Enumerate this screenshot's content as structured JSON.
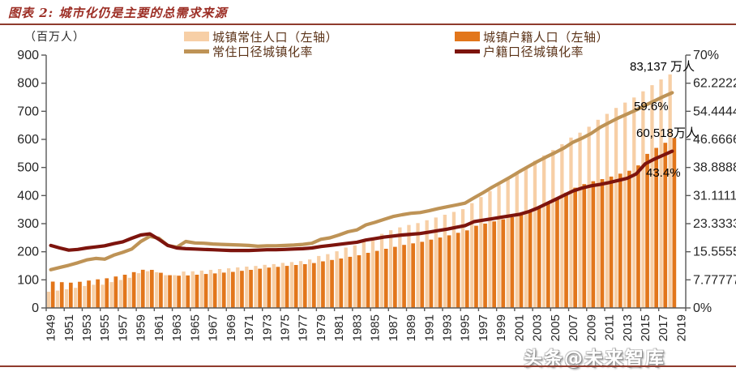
{
  "header": {
    "title": "图表 2: 城市化仍是主要的总需求来源"
  },
  "legend": {
    "items": [
      {
        "label": "城镇常住人口（左轴）",
        "swatch": "bar",
        "color": "#f7cfa6"
      },
      {
        "label": "常住口径城镇化率",
        "swatch": "line",
        "color": "#be9356"
      },
      {
        "label": "城镇户籍人口（左轴）",
        "swatch": "bar",
        "color": "#e2761b"
      },
      {
        "label": "户籍口径城镇化率",
        "swatch": "line",
        "color": "#7d140d"
      }
    ]
  },
  "watermark": "头条@未来智库",
  "chart_data": {
    "type": "combo-bar-line",
    "title": "城市化仍是主要的总需求来源",
    "x": [
      1949,
      1950,
      1951,
      1952,
      1953,
      1954,
      1955,
      1956,
      1957,
      1958,
      1959,
      1960,
      1961,
      1962,
      1963,
      1964,
      1965,
      1966,
      1967,
      1968,
      1969,
      1970,
      1971,
      1972,
      1973,
      1974,
      1975,
      1976,
      1977,
      1978,
      1979,
      1980,
      1981,
      1982,
      1983,
      1984,
      1985,
      1986,
      1987,
      1988,
      1989,
      1990,
      1991,
      1992,
      1993,
      1994,
      1995,
      1996,
      1997,
      1998,
      1999,
      2000,
      2001,
      2002,
      2003,
      2004,
      2005,
      2006,
      2007,
      2008,
      2009,
      2010,
      2011,
      2012,
      2013,
      2014,
      2015,
      2016,
      2017,
      2018
    ],
    "x_tick_labels": [
      "1949",
      "1951",
      "1953",
      "1955",
      "1957",
      "1959",
      "1961",
      "1963",
      "1965",
      "1967",
      "1969",
      "1971",
      "1973",
      "1975",
      "1977",
      "1979",
      "1981",
      "1983",
      "1985",
      "1987",
      "1989",
      "1991",
      "1993",
      "1995",
      "1997",
      "1999",
      "2001",
      "2003",
      "2005",
      "2007",
      "2009",
      "2011",
      "2013",
      "2015",
      "2017",
      "2019"
    ],
    "left_axis": {
      "label": "（百万人）",
      "min": 0,
      "max": 900,
      "step": 100,
      "format": "number"
    },
    "right_axis": {
      "min": 0,
      "max": 70,
      "step": 10,
      "format": "percent"
    },
    "grid": false,
    "legend_position": "top",
    "style": {
      "axis_color": "#595959",
      "text_color": "#262626"
    },
    "series": [
      {
        "name": "城镇常住人口（左轴）",
        "kind": "bar",
        "axis": "left",
        "color": "#f7cfa6",
        "values": [
          57.7,
          61.7,
          66.3,
          71.6,
          78.3,
          82.5,
          82.9,
          91.9,
          99.5,
          107.2,
          123.7,
          130.7,
          127.1,
          116.6,
          116.5,
          129.5,
          130.4,
          133.1,
          135.5,
          138.4,
          141.2,
          144.2,
          147.1,
          149.4,
          153.5,
          156.0,
          160.3,
          163.4,
          166.7,
          172.4,
          185.0,
          191.4,
          201.7,
          214.8,
          222.7,
          240.2,
          250.9,
          263.7,
          276.7,
          286.6,
          295.4,
          302.0,
          312.0,
          321.8,
          331.7,
          341.7,
          351.7,
          373.0,
          394.5,
          416.1,
          437.5,
          459.1,
          480.6,
          502.1,
          523.8,
          542.8,
          562.1,
          582.9,
          606.3,
          624.0,
          645.1,
          669.8,
          690.8,
          711.8,
          731.1,
          749.2,
          771.2,
          793.0,
          813.5,
          831.4
        ]
      },
      {
        "name": "城镇户籍人口（左轴）",
        "kind": "bar",
        "axis": "left",
        "color": "#e2761b",
        "values": [
          93.7,
          91.6,
          90.1,
          93.1,
          97.6,
          101.8,
          105.7,
          111.8,
          118.3,
          127.4,
          135.8,
          135.7,
          125.1,
          116.4,
          114.8,
          115.6,
          118.2,
          120.8,
          123.0,
          125.7,
          128.3,
          132.0,
          135.5,
          139.5,
          143.6,
          146.3,
          149.7,
          152.8,
          155.8,
          159.8,
          165.8,
          170.8,
          176.1,
          182.0,
          187.5,
          196.2,
          203.2,
          210.7,
          217.5,
          224.3,
          229.9,
          235.5,
          243.2,
          250.7,
          258.4,
          267.3,
          276.2,
          292.5,
          300.4,
          308.2,
          315.7,
          323.2,
          330.6,
          341.7,
          356.7,
          374.4,
          392.3,
          410.1,
          428.1,
          440.9,
          451.1,
          458.6,
          467.5,
          478.0,
          488.5,
          507.5,
          548.5,
          569.7,
          588.0,
          605.2
        ]
      },
      {
        "name": "常住口径城镇化率",
        "kind": "line",
        "axis": "right",
        "color": "#be9356",
        "values": [
          10.6,
          11.2,
          11.8,
          12.5,
          13.3,
          13.7,
          13.5,
          14.6,
          15.4,
          16.3,
          18.4,
          19.8,
          19.3,
          17.3,
          16.8,
          18.4,
          18.0,
          17.9,
          17.7,
          17.6,
          17.5,
          17.4,
          17.3,
          17.1,
          17.2,
          17.2,
          17.3,
          17.4,
          17.6,
          17.9,
          19.0,
          19.4,
          20.2,
          21.1,
          21.6,
          23.0,
          23.7,
          24.5,
          25.3,
          25.8,
          26.2,
          26.4,
          26.9,
          27.5,
          28.0,
          28.5,
          29.0,
          30.5,
          31.9,
          33.4,
          34.8,
          36.2,
          37.7,
          39.1,
          40.5,
          41.8,
          43.0,
          44.3,
          45.9,
          47.0,
          48.3,
          50.0,
          51.3,
          52.6,
          53.7,
          54.8,
          56.1,
          57.3,
          58.5,
          59.6
        ]
      },
      {
        "name": "户籍口径城镇化率",
        "kind": "line",
        "axis": "right",
        "color": "#7d140d",
        "values": [
          17.3,
          16.6,
          16.0,
          16.2,
          16.6,
          16.9,
          17.2,
          17.8,
          18.3,
          19.3,
          20.2,
          20.5,
          19.0,
          17.3,
          16.6,
          16.4,
          16.3,
          16.2,
          16.1,
          16.0,
          15.9,
          15.9,
          15.9,
          16.0,
          16.1,
          16.1,
          16.2,
          16.3,
          16.4,
          16.6,
          17.0,
          17.3,
          17.6,
          17.9,
          18.2,
          18.8,
          19.2,
          19.6,
          19.9,
          20.2,
          20.4,
          20.6,
          21.0,
          21.4,
          21.8,
          22.3,
          22.8,
          23.9,
          24.3,
          24.7,
          25.1,
          25.5,
          25.9,
          26.6,
          27.6,
          28.8,
          30.0,
          31.2,
          32.4,
          33.2,
          33.8,
          34.2,
          34.7,
          35.3,
          35.9,
          37.1,
          39.9,
          41.2,
          42.3,
          43.4
        ]
      }
    ],
    "annotations": [
      {
        "text": "83,137 万人",
        "x": 777,
        "y": 71
      },
      {
        "text": "59.6%",
        "x": 782,
        "y": 123
      },
      {
        "text": "60,518万人",
        "x": 785,
        "y": 153
      },
      {
        "text": "43.4%",
        "x": 797,
        "y": 205
      }
    ]
  }
}
